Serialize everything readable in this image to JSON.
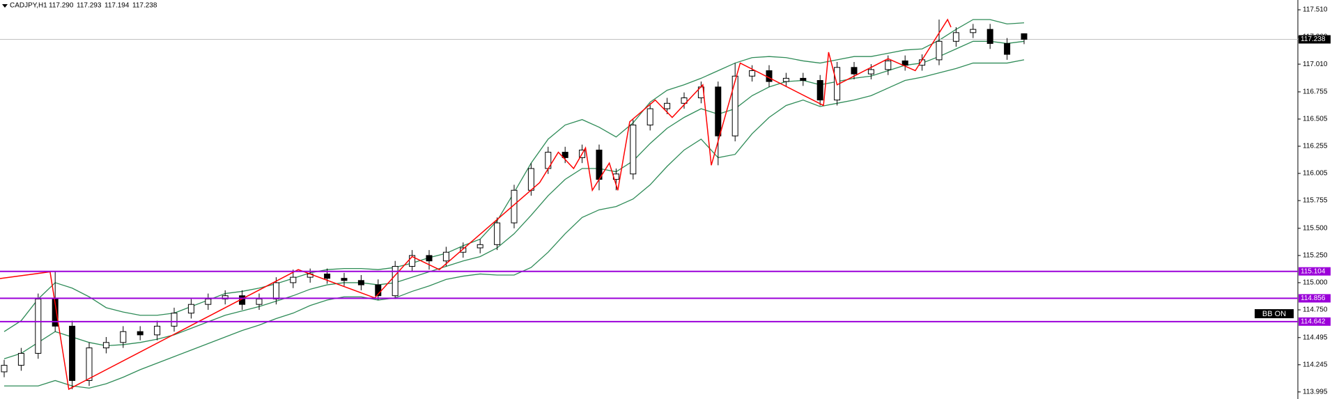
{
  "chart_data": {
    "type": "candlestick",
    "title": "CADJPY,H1",
    "ohlc_labels": [
      "117.290",
      "117.293",
      "117.194",
      "117.238"
    ],
    "indicator_label": "BB ON",
    "ylim": [
      113.93,
      117.6
    ],
    "yticks": [
      113.995,
      114.245,
      114.495,
      {
        "value": 114.75,
        "label": "114.750"
      },
      {
        "value": 115,
        "label": "115.000"
      },
      {
        "value": 115.25,
        "label": "115.250"
      },
      {
        "value": 115.5,
        "label": "115.500"
      },
      115.755,
      116.005,
      116.255,
      116.505,
      116.755,
      {
        "value": 117.01,
        "label": "117.010"
      },
      {
        "value": 117.26,
        "label": "117.260"
      },
      {
        "value": 117.51,
        "label": "117.510"
      }
    ],
    "up_color": "#ffffff",
    "down_color": "#000000",
    "open": [
      114.18,
      114.24,
      114.35,
      114.85,
      114.6,
      114.1,
      114.4,
      114.45,
      114.55,
      114.52,
      114.6,
      114.72,
      114.8,
      114.85,
      114.88,
      114.8,
      114.85,
      115.0,
      115.05,
      115.08,
      115.04,
      115.02,
      114.98,
      114.88,
      115.15,
      115.25,
      115.2,
      115.28,
      115.32,
      115.35,
      115.55,
      115.85,
      116.05,
      116.2,
      116.15,
      116.22,
      115.95,
      116.0,
      116.45,
      116.6,
      116.65,
      116.7,
      116.8,
      116.35,
      116.9,
      116.95,
      116.85,
      116.88,
      116.86,
      116.68,
      116.98,
      116.92,
      116.96,
      117.04,
      117.0,
      117.05,
      117.22,
      117.3,
      117.33,
      117.2,
      117.29
    ],
    "high": [
      114.29,
      114.4,
      114.9,
      115.1,
      114.65,
      114.45,
      114.5,
      114.6,
      114.6,
      114.65,
      114.77,
      114.85,
      114.9,
      114.93,
      114.93,
      114.9,
      115.05,
      115.12,
      115.13,
      115.13,
      115.09,
      115.07,
      115.03,
      115.2,
      115.3,
      115.3,
      115.33,
      115.37,
      115.4,
      115.6,
      115.9,
      116.1,
      116.25,
      116.25,
      116.27,
      116.27,
      116.05,
      116.5,
      116.65,
      116.7,
      116.75,
      116.85,
      116.85,
      117.02,
      117.0,
      117.0,
      116.93,
      116.93,
      116.91,
      117.03,
      117.03,
      117.01,
      117.09,
      117.09,
      117.1,
      117.42,
      117.35,
      117.38,
      117.38,
      117.25,
      117.293
    ],
    "low": [
      114.13,
      114.19,
      114.3,
      114.55,
      114.02,
      114.05,
      114.35,
      114.4,
      114.47,
      114.47,
      114.55,
      114.67,
      114.75,
      114.8,
      114.75,
      114.75,
      114.8,
      114.95,
      115.0,
      114.99,
      114.97,
      114.93,
      114.84,
      114.85,
      115.1,
      115.12,
      115.15,
      115.23,
      115.27,
      115.3,
      115.5,
      115.8,
      116.0,
      116.1,
      116.1,
      115.85,
      115.85,
      115.95,
      116.4,
      116.55,
      116.6,
      116.65,
      116.08,
      116.3,
      116.85,
      116.8,
      116.8,
      116.81,
      116.63,
      116.63,
      116.87,
      116.87,
      116.91,
      116.95,
      116.95,
      117.0,
      117.17,
      117.25,
      117.15,
      117.05,
      117.194
    ],
    "close": [
      114.24,
      114.35,
      114.85,
      114.6,
      114.1,
      114.4,
      114.45,
      114.55,
      114.52,
      114.6,
      114.72,
      114.8,
      114.85,
      114.88,
      114.8,
      114.85,
      115.0,
      115.05,
      115.08,
      115.04,
      115.02,
      114.98,
      114.88,
      115.15,
      115.25,
      115.2,
      115.28,
      115.32,
      115.35,
      115.55,
      115.85,
      116.05,
      116.2,
      116.15,
      116.22,
      115.95,
      116.0,
      116.45,
      116.6,
      116.65,
      116.7,
      116.8,
      116.35,
      116.9,
      116.95,
      116.85,
      116.88,
      116.86,
      116.68,
      116.98,
      116.92,
      116.96,
      117.04,
      117.0,
      117.05,
      117.22,
      117.3,
      117.33,
      117.2,
      117.1,
      117.238
    ],
    "bands": {
      "color": "#2e8b57",
      "upper": [
        114.55,
        114.65,
        114.85,
        115.0,
        114.95,
        114.87,
        114.77,
        114.73,
        114.7,
        114.7,
        114.72,
        114.78,
        114.84,
        114.9,
        114.92,
        114.95,
        114.99,
        115.04,
        115.09,
        115.12,
        115.13,
        115.13,
        115.12,
        115.14,
        115.18,
        115.23,
        115.27,
        115.34,
        115.4,
        115.57,
        115.83,
        116.1,
        116.32,
        116.45,
        116.5,
        116.43,
        116.34,
        116.47,
        116.66,
        116.77,
        116.82,
        116.88,
        116.95,
        117.02,
        117.07,
        117.08,
        117.07,
        117.04,
        117.02,
        117.05,
        117.08,
        117.08,
        117.11,
        117.14,
        117.15,
        117.23,
        117.33,
        117.42,
        117.42,
        117.38,
        117.39
      ],
      "middle": [
        114.3,
        114.35,
        114.45,
        114.55,
        114.5,
        114.45,
        114.42,
        114.43,
        114.45,
        114.48,
        114.52,
        114.58,
        114.64,
        114.7,
        114.74,
        114.78,
        114.83,
        114.88,
        114.94,
        114.98,
        115.0,
        115.0,
        114.98,
        115.0,
        115.05,
        115.1,
        115.15,
        115.2,
        115.24,
        115.32,
        115.45,
        115.62,
        115.8,
        115.95,
        116.05,
        116.05,
        116.02,
        116.12,
        116.28,
        116.42,
        116.52,
        116.6,
        116.55,
        116.6,
        116.72,
        116.8,
        116.85,
        116.86,
        116.82,
        116.85,
        116.88,
        116.9,
        116.95,
        117.0,
        117.02,
        117.08,
        117.15,
        117.22,
        117.22,
        117.2,
        117.22
      ],
      "lower": [
        114.05,
        114.05,
        114.05,
        114.1,
        114.05,
        114.03,
        114.07,
        114.13,
        114.2,
        114.26,
        114.32,
        114.38,
        114.44,
        114.5,
        114.56,
        114.61,
        114.67,
        114.72,
        114.79,
        114.84,
        114.87,
        114.87,
        114.84,
        114.86,
        114.92,
        114.97,
        115.03,
        115.06,
        115.08,
        115.07,
        115.07,
        115.14,
        115.28,
        115.45,
        115.6,
        115.67,
        115.7,
        115.77,
        115.9,
        116.07,
        116.22,
        116.32,
        116.15,
        116.18,
        116.37,
        116.52,
        116.63,
        116.68,
        116.62,
        116.65,
        116.68,
        116.72,
        116.79,
        116.86,
        116.89,
        116.93,
        116.97,
        117.02,
        117.02,
        117.02,
        117.05
      ]
    },
    "zigzag": {
      "color": "#ff0000",
      "x": [
        -3,
        2.7,
        3.8,
        17.3,
        21.8,
        24,
        25.6,
        31.5,
        32.6,
        33.5,
        34.2,
        34.6,
        35.6,
        36.1,
        36.8,
        38.3,
        39.3,
        41.1,
        41.6,
        43.3,
        48.2,
        48.5,
        49,
        52,
        53.6,
        55.5,
        55.7
      ],
      "values": [
        114.98,
        115.1,
        114.02,
        115.12,
        114.86,
        115.24,
        115.12,
        115.92,
        116.2,
        116.05,
        116.24,
        115.85,
        116.1,
        115.85,
        116.48,
        116.68,
        116.52,
        116.82,
        116.08,
        117.02,
        116.63,
        117.12,
        116.82,
        117.06,
        116.95,
        117.42,
        117.35
      ]
    },
    "levels": {
      "color": "#9b00d9",
      "values": [
        115.104,
        114.856,
        114.642
      ]
    },
    "current_price": 117.238
  }
}
